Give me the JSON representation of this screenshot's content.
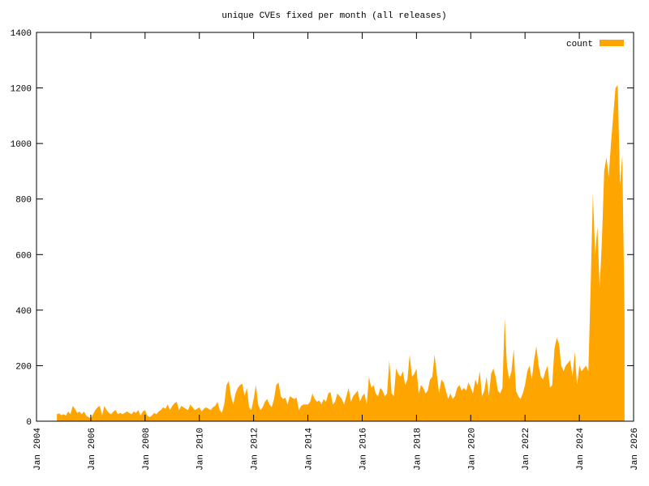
{
  "chart_data": {
    "type": "area",
    "title": "unique CVEs fixed per month (all releases)",
    "x": [
      "2004-10",
      "2004-11",
      "2004-12",
      "2005-01",
      "2005-02",
      "2005-03",
      "2005-04",
      "2005-05",
      "2005-06",
      "2005-07",
      "2005-08",
      "2005-09",
      "2005-10",
      "2005-11",
      "2005-12",
      "2006-01",
      "2006-02",
      "2006-03",
      "2006-04",
      "2006-05",
      "2006-06",
      "2006-07",
      "2006-08",
      "2006-09",
      "2006-10",
      "2006-11",
      "2006-12",
      "2007-01",
      "2007-02",
      "2007-03",
      "2007-04",
      "2007-05",
      "2007-06",
      "2007-07",
      "2007-08",
      "2007-09",
      "2007-10",
      "2007-11",
      "2007-12",
      "2008-01",
      "2008-02",
      "2008-03",
      "2008-04",
      "2008-05",
      "2008-06",
      "2008-07",
      "2008-08",
      "2008-09",
      "2008-10",
      "2008-11",
      "2008-12",
      "2009-01",
      "2009-02",
      "2009-03",
      "2009-04",
      "2009-05",
      "2009-06",
      "2009-07",
      "2009-08",
      "2009-09",
      "2009-10",
      "2009-11",
      "2009-12",
      "2010-01",
      "2010-02",
      "2010-03",
      "2010-04",
      "2010-05",
      "2010-06",
      "2010-07",
      "2010-08",
      "2010-09",
      "2010-10",
      "2010-11",
      "2010-12",
      "2011-01",
      "2011-02",
      "2011-03",
      "2011-04",
      "2011-05",
      "2011-06",
      "2011-07",
      "2011-08",
      "2011-09",
      "2011-10",
      "2011-11",
      "2011-12",
      "2012-01",
      "2012-02",
      "2012-03",
      "2012-04",
      "2012-05",
      "2012-06",
      "2012-07",
      "2012-08",
      "2012-09",
      "2012-10",
      "2012-11",
      "2012-12",
      "2013-01",
      "2013-02",
      "2013-03",
      "2013-04",
      "2013-05",
      "2013-06",
      "2013-07",
      "2013-08",
      "2013-09",
      "2013-10",
      "2013-11",
      "2013-12",
      "2014-01",
      "2014-02",
      "2014-03",
      "2014-04",
      "2014-05",
      "2014-06",
      "2014-07",
      "2014-08",
      "2014-09",
      "2014-10",
      "2014-11",
      "2014-12",
      "2015-01",
      "2015-02",
      "2015-03",
      "2015-04",
      "2015-05",
      "2015-06",
      "2015-07",
      "2015-08",
      "2015-09",
      "2015-10",
      "2015-11",
      "2015-12",
      "2016-01",
      "2016-02",
      "2016-03",
      "2016-04",
      "2016-05",
      "2016-06",
      "2016-07",
      "2016-08",
      "2016-09",
      "2016-10",
      "2016-11",
      "2016-12",
      "2017-01",
      "2017-02",
      "2017-03",
      "2017-04",
      "2017-05",
      "2017-06",
      "2017-07",
      "2017-08",
      "2017-09",
      "2017-10",
      "2017-11",
      "2017-12",
      "2018-01",
      "2018-02",
      "2018-03",
      "2018-04",
      "2018-05",
      "2018-06",
      "2018-07",
      "2018-08",
      "2018-09",
      "2018-10",
      "2018-11",
      "2018-12",
      "2019-01",
      "2019-02",
      "2019-03",
      "2019-04",
      "2019-05",
      "2019-06",
      "2019-07",
      "2019-08",
      "2019-09",
      "2019-10",
      "2019-11",
      "2019-12",
      "2020-01",
      "2020-02",
      "2020-03",
      "2020-04",
      "2020-05",
      "2020-06",
      "2020-07",
      "2020-08",
      "2020-09",
      "2020-10",
      "2020-11",
      "2020-12",
      "2021-01",
      "2021-02",
      "2021-03",
      "2021-04",
      "2021-05",
      "2021-06",
      "2021-07",
      "2021-08",
      "2021-09",
      "2021-10",
      "2021-11",
      "2021-12",
      "2022-01",
      "2022-02",
      "2022-03",
      "2022-04",
      "2022-05",
      "2022-06",
      "2022-07",
      "2022-08",
      "2022-09",
      "2022-10",
      "2022-11",
      "2022-12",
      "2023-01",
      "2023-02",
      "2023-03",
      "2023-04",
      "2023-05",
      "2023-06",
      "2023-07",
      "2023-08",
      "2023-09",
      "2023-10",
      "2023-11",
      "2023-12",
      "2024-01",
      "2024-02",
      "2024-03",
      "2024-04",
      "2024-05",
      "2024-06",
      "2024-07",
      "2024-08",
      "2024-09",
      "2024-10",
      "2024-11",
      "2024-12",
      "2025-01",
      "2025-02",
      "2025-03",
      "2025-04",
      "2025-05",
      "2025-06",
      "2025-07",
      "2025-08",
      "2025-09"
    ],
    "series": [
      {
        "name": "count",
        "color": "#ffa500",
        "values": [
          25,
          28,
          22,
          25,
          20,
          35,
          25,
          55,
          45,
          30,
          35,
          25,
          35,
          20,
          15,
          10,
          25,
          40,
          50,
          55,
          20,
          55,
          40,
          30,
          25,
          35,
          40,
          25,
          30,
          25,
          30,
          35,
          30,
          25,
          35,
          30,
          40,
          20,
          35,
          40,
          20,
          15,
          20,
          30,
          25,
          35,
          40,
          50,
          45,
          60,
          40,
          55,
          65,
          70,
          40,
          55,
          50,
          45,
          40,
          60,
          50,
          40,
          45,
          50,
          35,
          45,
          50,
          45,
          40,
          50,
          55,
          70,
          40,
          30,
          60,
          130,
          145,
          90,
          60,
          100,
          120,
          130,
          135,
          90,
          120,
          50,
          40,
          80,
          130,
          60,
          40,
          50,
          70,
          80,
          60,
          50,
          80,
          130,
          140,
          90,
          80,
          85,
          60,
          90,
          85,
          80,
          85,
          40,
          55,
          60,
          60,
          60,
          70,
          100,
          80,
          70,
          75,
          60,
          80,
          70,
          100,
          105,
          60,
          70,
          100,
          90,
          80,
          60,
          90,
          120,
          70,
          90,
          100,
          110,
          70,
          90,
          100,
          60,
          160,
          120,
          130,
          100,
          90,
          120,
          110,
          90,
          100,
          220,
          100,
          90,
          190,
          170,
          160,
          180,
          130,
          150,
          240,
          160,
          170,
          190,
          100,
          130,
          120,
          100,
          110,
          150,
          160,
          240,
          170,
          100,
          150,
          140,
          110,
          80,
          100,
          80,
          90,
          120,
          130,
          110,
          120,
          110,
          140,
          120,
          100,
          150,
          130,
          180,
          90,
          110,
          160,
          90,
          170,
          190,
          160,
          110,
          100,
          120,
          370,
          200,
          150,
          180,
          260,
          110,
          90,
          80,
          100,
          130,
          180,
          200,
          150,
          220,
          270,
          200,
          160,
          150,
          180,
          200,
          120,
          130,
          260,
          300,
          280,
          200,
          180,
          200,
          210,
          220,
          160,
          250,
          130,
          200,
          180,
          190,
          200,
          180,
          480,
          820,
          600,
          700,
          480,
          650,
          900,
          950,
          880,
          1000,
          1100,
          1200,
          1210,
          850,
          960,
          380
        ]
      }
    ],
    "xlim": [
      "2004-01",
      "2026-01"
    ],
    "xticks": [
      {
        "value": "2004-01",
        "label": "Jan 2004"
      },
      {
        "value": "2006-01",
        "label": "Jan 2006"
      },
      {
        "value": "2008-01",
        "label": "Jan 2008"
      },
      {
        "value": "2010-01",
        "label": "Jan 2010"
      },
      {
        "value": "2012-01",
        "label": "Jan 2012"
      },
      {
        "value": "2014-01",
        "label": "Jan 2014"
      },
      {
        "value": "2016-01",
        "label": "Jan 2016"
      },
      {
        "value": "2018-01",
        "label": "Jan 2018"
      },
      {
        "value": "2020-01",
        "label": "Jan 2020"
      },
      {
        "value": "2022-01",
        "label": "Jan 2022"
      },
      {
        "value": "2024-01",
        "label": "Jan 2024"
      },
      {
        "value": "2026-01",
        "label": "Jan 2026"
      }
    ],
    "ylim": [
      0,
      1400
    ],
    "yticks": [
      0,
      200,
      400,
      600,
      800,
      1000,
      1200,
      1400
    ],
    "legend": "top-right"
  }
}
